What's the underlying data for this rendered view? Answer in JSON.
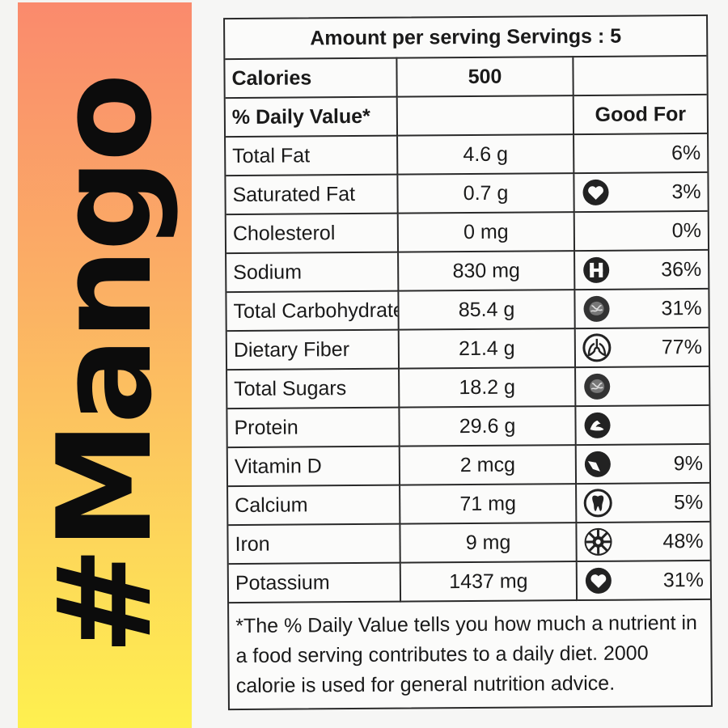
{
  "banner": {
    "title": "#Mango"
  },
  "label": {
    "serving_header": "Amount per serving Servings : 5",
    "calories_label": "Calories",
    "calories_value": "500",
    "daily_value_label": "% Daily Value*",
    "good_for_label": "Good For",
    "rows": [
      {
        "name": "Total Fat",
        "amount": "4.6 g",
        "icon": "",
        "pct": "6%"
      },
      {
        "name": "Saturated Fat",
        "amount": "0.7 g",
        "icon": "heart-icon",
        "pct": "3%"
      },
      {
        "name": "Cholesterol",
        "amount": "0 mg",
        "icon": "",
        "pct": "0%"
      },
      {
        "name": "Sodium",
        "amount": "830 mg",
        "icon": "hospital-icon",
        "pct": "36%"
      },
      {
        "name": "Total Carbohydrate",
        "amount": "85.4 g",
        "icon": "brain-icon",
        "pct": "31%"
      },
      {
        "name": "Dietary Fiber",
        "amount": "21.4 g",
        "icon": "lungs-icon",
        "pct": "77%"
      },
      {
        "name": "Total Sugars",
        "amount": "18.2 g",
        "icon": "brain-icon",
        "pct": ""
      },
      {
        "name": "Protein",
        "amount": "29.6 g",
        "icon": "muscle-icon",
        "pct": ""
      },
      {
        "name": "Vitamin D",
        "amount": "2 mcg",
        "icon": "bone-icon",
        "pct": "9%"
      },
      {
        "name": "Calcium",
        "amount": "71 mg",
        "icon": "tooth-icon",
        "pct": "5%"
      },
      {
        "name": "Iron",
        "amount": "9 mg",
        "icon": "blood-cell-icon",
        "pct": "48%"
      },
      {
        "name": "Potassium",
        "amount": "1437 mg",
        "icon": "heart-icon",
        "pct": "31%"
      }
    ],
    "footnote": "*The % Daily Value tells you how much a nutrient in a food serving contributes to a daily diet. 2000 calorie is used for general nutrition advice."
  }
}
